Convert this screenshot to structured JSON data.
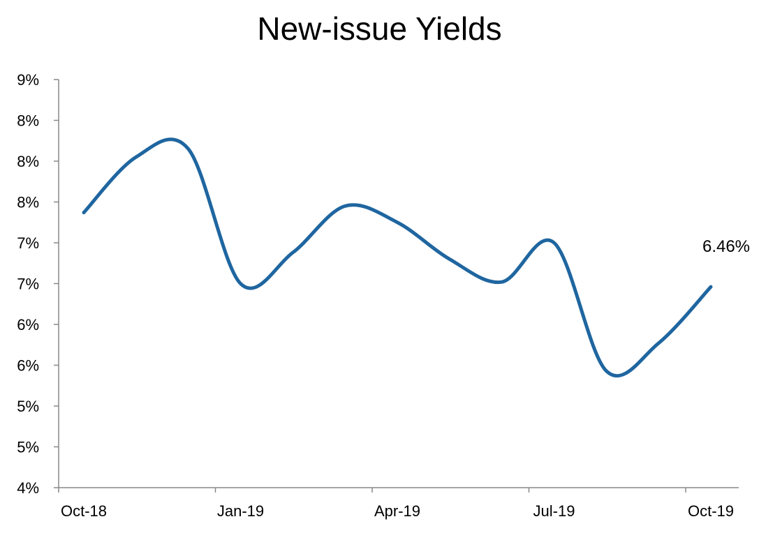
{
  "chart_data": {
    "type": "line",
    "title": "New-issue Yields",
    "xlabel": "",
    "ylabel": "",
    "ylim": [
      4.0,
      9.0
    ],
    "y_ticks": [
      4.0,
      4.5,
      5.0,
      5.5,
      6.0,
      6.5,
      7.0,
      7.5,
      8.0,
      8.5,
      9.0
    ],
    "y_tick_labels": [
      "4%",
      "5%",
      "5%",
      "6%",
      "6%",
      "7%",
      "7%",
      "8%",
      "8%",
      "8%",
      "9%"
    ],
    "x_tick_labels": [
      "Oct-18",
      "Jan-19",
      "Apr-19",
      "Jul-19",
      "Oct-19"
    ],
    "grid": false,
    "legend": "none",
    "line_color": "#1f66a0",
    "series": [
      {
        "x": [
          "Oct-18",
          "Nov-18",
          "Dec-18",
          "Jan-19",
          "Feb-19",
          "Mar-19",
          "Apr-19",
          "May-19",
          "Jun-19",
          "Jul-19",
          "Aug-19",
          "Sep-19",
          "Oct-19"
        ],
        "values": [
          7.37,
          8.05,
          8.15,
          6.5,
          6.88,
          7.45,
          7.25,
          6.8,
          6.52,
          7.0,
          5.43,
          5.77,
          6.46
        ]
      }
    ],
    "annotations": [
      {
        "text": "6.46%",
        "x": "Oct-19",
        "y": 6.46
      }
    ]
  }
}
